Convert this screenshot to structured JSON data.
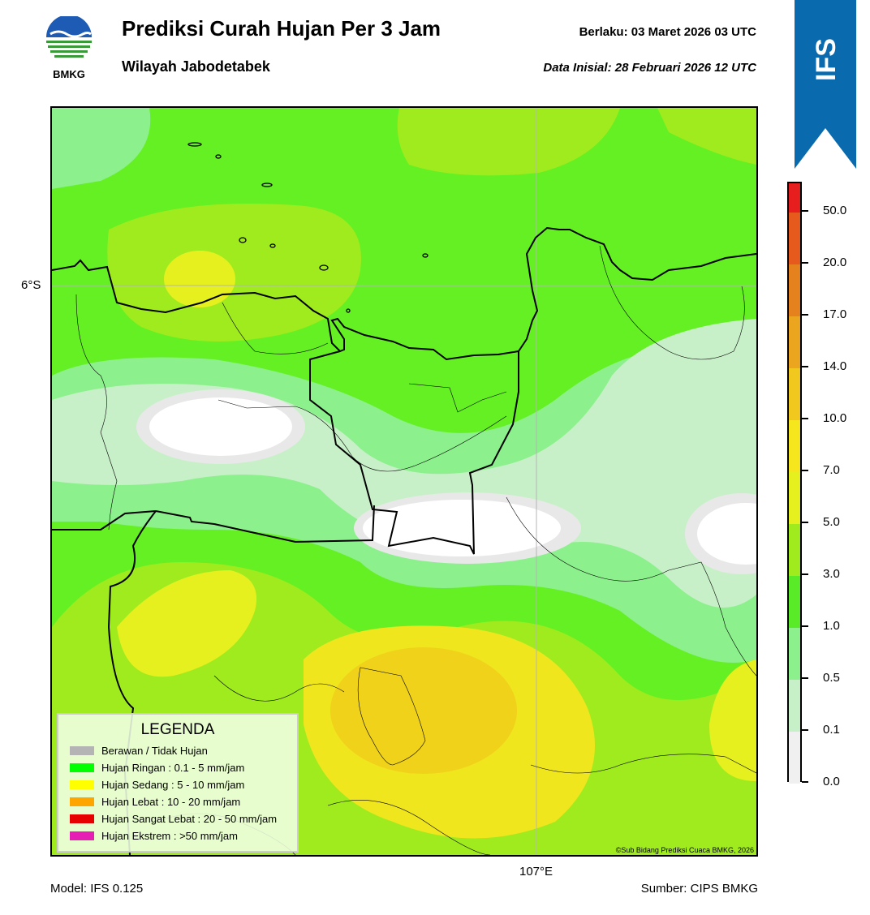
{
  "header": {
    "logo_text": "BMKG",
    "title": "Prediksi Curah Hujan Per 3 Jam",
    "subtitle": "Wilayah Jabodetabek",
    "valid_text": "Berlaku:  03 Maret 2026 03 UTC",
    "init_text": "Data Inisial:  28 Februari 2026 12 UTC",
    "model_banner": "IFS",
    "banner_color": "#0a6aae"
  },
  "map": {
    "lat_label": "6°S",
    "lon_label": "107°E",
    "credit": "©Sub Bidang Prediksi Cuaca BMKG, 2026"
  },
  "legend": {
    "title": "LEGENDA",
    "items": [
      {
        "label": "Berawan / Tidak Hujan",
        "color": "#b4b4b4"
      },
      {
        "label": "Hujan Ringan : 0.1 - 5 mm/jam",
        "color": "#00ff00"
      },
      {
        "label": "Hujan Sedang : 5 - 10 mm/jam",
        "color": "#ffff00"
      },
      {
        "label": "Hujan Lebat : 10 - 20 mm/jam",
        "color": "#ffa500"
      },
      {
        "label": "Hujan Sangat Lebat : 20 - 50 mm/jam",
        "color": "#e60000"
      },
      {
        "label": "Hujan Ekstrem : >50 mm/jam",
        "color": "#e61eb4"
      }
    ]
  },
  "colorbar": {
    "labels": [
      "0.0",
      "0.1",
      "0.5",
      "1.0",
      "3.0",
      "5.0",
      "7.0",
      "10.0",
      "14.0",
      "17.0",
      "20.0",
      "50.0"
    ],
    "colors": [
      "#f0f0f0",
      "#c8f0c8",
      "#8cf08c",
      "#5aeb28",
      "#a0eb1e",
      "#e6f01e",
      "#f5e61e",
      "#f0c81e",
      "#eba51e",
      "#e6821e",
      "#e65a1e",
      "#e61e1e",
      "#e61eb4"
    ]
  },
  "footer": {
    "model": "Model: IFS 0.125",
    "source": "Sumber: CIPS BMKG"
  }
}
